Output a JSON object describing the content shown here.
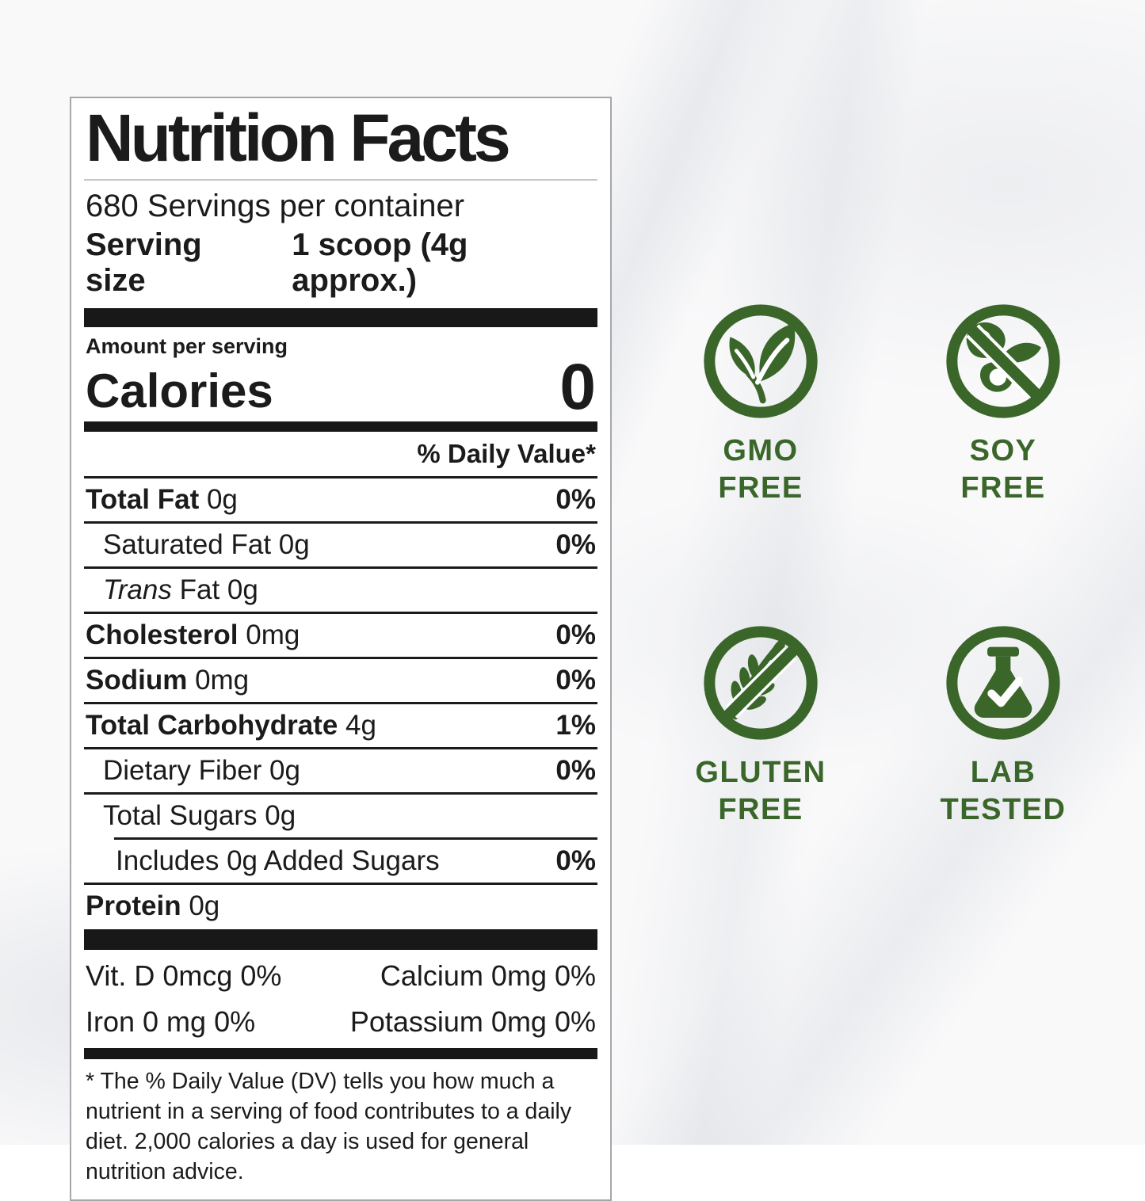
{
  "colors": {
    "green": "#3a662a",
    "black": "#1b1b1b"
  },
  "label": {
    "title": "Nutrition Facts",
    "servings_per_container": "680 Servings per container",
    "serving_size_label": "Serving size",
    "serving_size_value": "1 scoop (4g approx.)",
    "amount_per_serving_label": "Amount per serving",
    "calories_label": "Calories",
    "calories_value": "0",
    "daily_value_header": "% Daily Value*",
    "nutrient_rows": [
      {
        "lead": "Total Fat",
        "lead_style": "bold",
        "rest": "0g",
        "dv": "0%",
        "indent": 0,
        "sep_after": "full"
      },
      {
        "lead": "",
        "lead_style": "regular",
        "rest": "Saturated Fat 0g",
        "dv": "0%",
        "indent": 1,
        "sep_after": "full"
      },
      {
        "lead": "Trans",
        "lead_style": "italic",
        "rest": "Fat 0g",
        "dv": "",
        "indent": 1,
        "sep_after": "full"
      },
      {
        "lead": "Cholesterol",
        "lead_style": "bold",
        "rest": "0mg",
        "dv": "0%",
        "indent": 0,
        "sep_after": "full"
      },
      {
        "lead": "Sodium",
        "lead_style": "bold",
        "rest": "0mg",
        "dv": "0%",
        "indent": 0,
        "sep_after": "full"
      },
      {
        "lead": "Total Carbohydrate",
        "lead_style": "bold",
        "rest": "4g",
        "dv": "1%",
        "indent": 0,
        "sep_after": "full"
      },
      {
        "lead": "",
        "lead_style": "regular",
        "rest": "Dietary Fiber 0g",
        "dv": "0%",
        "indent": 1,
        "sep_after": "full"
      },
      {
        "lead": "",
        "lead_style": "regular",
        "rest": "Total Sugars 0g",
        "dv": "",
        "indent": 1,
        "sep_after": "indented"
      },
      {
        "lead": "",
        "lead_style": "regular",
        "rest": "Includes 0g Added Sugars",
        "dv": "0%",
        "indent": 2,
        "sep_after": "full"
      },
      {
        "lead": "Protein",
        "lead_style": "bold",
        "rest": "0g",
        "dv": "",
        "indent": 0,
        "sep_after": "none"
      }
    ],
    "micronutrients": [
      {
        "left": "Vit. D 0mcg 0%",
        "right": "Calcium 0mg 0%"
      },
      {
        "left": "Iron 0 mg 0%",
        "right": "Potassium 0mg 0%"
      }
    ],
    "footnote": "* The % Daily Value (DV) tells you how much a nutrient in a serving of food contributes to a daily diet. 2,000 calories a day is used for general nutrition advice."
  },
  "badges": [
    {
      "id": "gmo-free",
      "icon": "gmo-leaf-icon",
      "line1": "GMO",
      "line2": "FREE"
    },
    {
      "id": "soy-free",
      "icon": "soy-crossed-icon",
      "line1": "SOY",
      "line2": "FREE"
    },
    {
      "id": "gluten-free",
      "icon": "gluten-crossed-icon",
      "line1": "GLUTEN",
      "line2": "FREE"
    },
    {
      "id": "lab-tested",
      "icon": "lab-flask-icon",
      "line1": "LAB",
      "line2": "TESTED"
    }
  ]
}
